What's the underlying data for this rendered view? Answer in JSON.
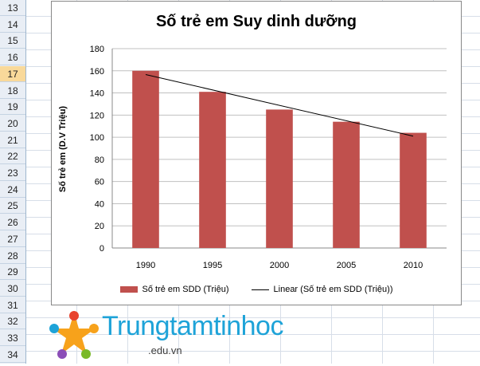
{
  "spreadsheet": {
    "row_numbers": [
      "13",
      "14",
      "15",
      "16",
      "17",
      "18",
      "19",
      "20",
      "21",
      "22",
      "23",
      "24",
      "25",
      "26",
      "27",
      "28",
      "29",
      "30",
      "31",
      "32",
      "33",
      "34"
    ],
    "active_row": "17"
  },
  "chart_data": {
    "type": "bar",
    "title": "Số trẻ em Suy dinh dưỡng",
    "xlabel": "",
    "ylabel": "Số trẻ em (D.V Triệu)",
    "categories": [
      "1990",
      "1995",
      "2000",
      "2005",
      "2010"
    ],
    "series": [
      {
        "name": "Số trẻ em SDD (Triệu)",
        "values": [
          160,
          141,
          125,
          114,
          104
        ],
        "color": "#c0504d"
      }
    ],
    "trendline": {
      "name": "Linear (Số trẻ em SDD (Triệu))",
      "type": "linear",
      "color": "#000000"
    },
    "ylim": [
      0,
      180
    ],
    "yticks": [
      "0",
      "20",
      "40",
      "60",
      "80",
      "100",
      "120",
      "140",
      "160",
      "180"
    ],
    "grid": true,
    "legend_position": "bottom"
  },
  "logo": {
    "text": "Trungtamtinhoc",
    "sub": ".edu.vn"
  }
}
